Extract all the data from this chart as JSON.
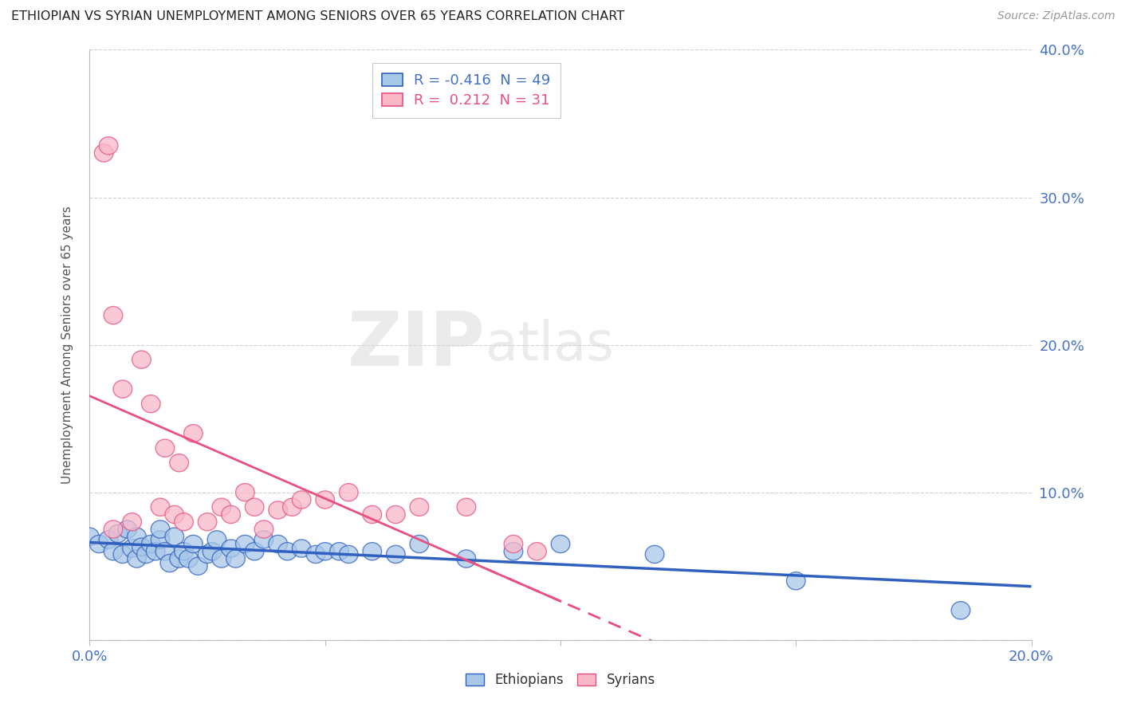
{
  "title": "ETHIOPIAN VS SYRIAN UNEMPLOYMENT AMONG SENIORS OVER 65 YEARS CORRELATION CHART",
  "source": "Source: ZipAtlas.com",
  "ylabel": "Unemployment Among Seniors over 65 years",
  "xlim": [
    0.0,
    0.2
  ],
  "ylim": [
    0.0,
    0.4
  ],
  "xticks": [
    0.0,
    0.05,
    0.1,
    0.15,
    0.2
  ],
  "yticks": [
    0.0,
    0.1,
    0.2,
    0.3,
    0.4
  ],
  "ytick_labels": [
    "",
    "10.0%",
    "20.0%",
    "30.0%",
    "40.0%"
  ],
  "xtick_labels": [
    "0.0%",
    "",
    "",
    "",
    "20.0%"
  ],
  "ethiopian_R": -0.416,
  "ethiopian_N": 49,
  "syrian_R": 0.212,
  "syrian_N": 31,
  "ethiopian_color": "#a8c8e8",
  "syrian_color": "#f8b8c8",
  "ethiopian_line_color": "#3060c0",
  "syrian_line_color": "#e85080",
  "watermark_zip": "ZIP",
  "watermark_atlas": "atlas",
  "ethiopian_x": [
    0.0,
    0.002,
    0.004,
    0.005,
    0.006,
    0.007,
    0.008,
    0.009,
    0.01,
    0.01,
    0.011,
    0.012,
    0.013,
    0.014,
    0.015,
    0.015,
    0.016,
    0.017,
    0.018,
    0.019,
    0.02,
    0.021,
    0.022,
    0.023,
    0.025,
    0.026,
    0.027,
    0.028,
    0.03,
    0.031,
    0.033,
    0.035,
    0.037,
    0.04,
    0.042,
    0.045,
    0.048,
    0.05,
    0.053,
    0.055,
    0.06,
    0.065,
    0.07,
    0.08,
    0.09,
    0.1,
    0.12,
    0.15,
    0.185
  ],
  "ethiopian_y": [
    0.07,
    0.065,
    0.068,
    0.06,
    0.072,
    0.058,
    0.075,
    0.062,
    0.055,
    0.07,
    0.063,
    0.058,
    0.065,
    0.06,
    0.068,
    0.075,
    0.06,
    0.052,
    0.07,
    0.055,
    0.06,
    0.055,
    0.065,
    0.05,
    0.058,
    0.06,
    0.068,
    0.055,
    0.062,
    0.055,
    0.065,
    0.06,
    0.068,
    0.065,
    0.06,
    0.062,
    0.058,
    0.06,
    0.06,
    0.058,
    0.06,
    0.058,
    0.065,
    0.055,
    0.06,
    0.065,
    0.058,
    0.04,
    0.02
  ],
  "syrian_x": [
    0.003,
    0.004,
    0.005,
    0.005,
    0.007,
    0.009,
    0.011,
    0.013,
    0.015,
    0.016,
    0.018,
    0.019,
    0.02,
    0.022,
    0.025,
    0.028,
    0.03,
    0.033,
    0.035,
    0.037,
    0.04,
    0.043,
    0.045,
    0.05,
    0.055,
    0.06,
    0.065,
    0.07,
    0.08,
    0.09,
    0.095
  ],
  "syrian_y": [
    0.33,
    0.335,
    0.075,
    0.22,
    0.17,
    0.08,
    0.19,
    0.16,
    0.09,
    0.13,
    0.085,
    0.12,
    0.08,
    0.14,
    0.08,
    0.09,
    0.085,
    0.1,
    0.09,
    0.075,
    0.088,
    0.09,
    0.095,
    0.095,
    0.1,
    0.085,
    0.085,
    0.09,
    0.09,
    0.065,
    0.06
  ]
}
